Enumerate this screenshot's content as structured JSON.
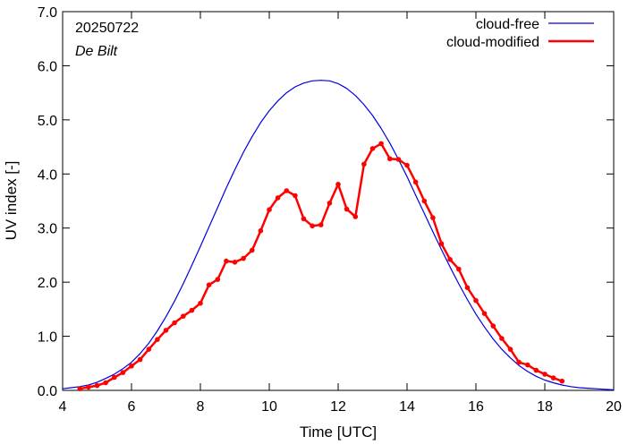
{
  "chart_data": {
    "type": "line",
    "title": "",
    "annotations": [
      "20250722",
      "De Bilt"
    ],
    "xlabel": "Time  [UTC]",
    "ylabel": "UV index  [-]",
    "xlim": [
      4,
      20
    ],
    "ylim": [
      0,
      7
    ],
    "xticks": [
      4,
      6,
      8,
      10,
      12,
      14,
      16,
      18,
      20
    ],
    "xtick_labels": [
      "4",
      "6",
      "8",
      "10",
      "12",
      "14",
      "16",
      "18",
      "20"
    ],
    "yticks": [
      0,
      1,
      2,
      3,
      4,
      5,
      6,
      7
    ],
    "ytick_labels": [
      "0.0",
      "1.0",
      "2.0",
      "3.0",
      "4.0",
      "5.0",
      "6.0",
      "7.0"
    ],
    "grid": false,
    "legend_position": "top-right",
    "series": [
      {
        "name": "cloud-free",
        "color": "#0000e0",
        "x": [
          4.0,
          4.25,
          4.5,
          4.75,
          5.0,
          5.25,
          5.5,
          5.75,
          6.0,
          6.25,
          6.5,
          6.75,
          7.0,
          7.25,
          7.5,
          7.75,
          8.0,
          8.25,
          8.5,
          8.75,
          9.0,
          9.25,
          9.5,
          9.75,
          10.0,
          10.25,
          10.5,
          10.75,
          11.0,
          11.25,
          11.5,
          11.75,
          12.0,
          12.25,
          12.5,
          12.75,
          13.0,
          13.25,
          13.5,
          13.75,
          14.0,
          14.25,
          14.5,
          14.75,
          15.0,
          15.25,
          15.5,
          15.75,
          16.0,
          16.25,
          16.5,
          16.75,
          17.0,
          17.25,
          17.5,
          17.75,
          18.0,
          18.25,
          18.5,
          18.75,
          19.0,
          19.25,
          19.5,
          19.75,
          20.0
        ],
        "y": [
          0.03,
          0.05,
          0.07,
          0.1,
          0.15,
          0.22,
          0.3,
          0.4,
          0.52,
          0.68,
          0.87,
          1.1,
          1.36,
          1.65,
          1.97,
          2.31,
          2.66,
          3.02,
          3.38,
          3.74,
          4.08,
          4.4,
          4.69,
          4.95,
          5.17,
          5.35,
          5.5,
          5.61,
          5.68,
          5.72,
          5.73,
          5.72,
          5.67,
          5.58,
          5.45,
          5.28,
          5.08,
          4.84,
          4.57,
          4.27,
          3.95,
          3.61,
          3.27,
          2.93,
          2.6,
          2.28,
          1.97,
          1.68,
          1.41,
          1.17,
          0.95,
          0.76,
          0.6,
          0.46,
          0.35,
          0.26,
          0.19,
          0.14,
          0.1,
          0.07,
          0.05,
          0.04,
          0.03,
          0.02,
          0.01
        ]
      },
      {
        "name": "cloud-modified",
        "color": "#ff0000",
        "x": [
          4.5,
          4.75,
          5.0,
          5.25,
          5.5,
          5.75,
          6.0,
          6.25,
          6.5,
          6.75,
          7.0,
          7.25,
          7.5,
          7.75,
          8.0,
          8.25,
          8.5,
          8.75,
          9.0,
          9.25,
          9.5,
          9.75,
          10.0,
          10.25,
          10.5,
          10.75,
          11.0,
          11.25,
          11.5,
          11.75,
          12.0,
          12.25,
          12.5,
          12.75,
          13.0,
          13.25,
          13.5,
          13.75,
          14.0,
          14.25,
          14.5,
          14.75,
          15.0,
          15.25,
          15.5,
          15.75,
          16.0,
          16.25,
          16.5,
          16.75,
          17.0,
          17.25,
          17.5,
          17.75,
          18.0,
          18.25,
          18.5
        ],
        "y": [
          0.03,
          0.06,
          0.09,
          0.14,
          0.24,
          0.33,
          0.45,
          0.57,
          0.76,
          0.94,
          1.11,
          1.25,
          1.37,
          1.48,
          1.61,
          1.95,
          2.05,
          2.39,
          2.37,
          2.44,
          2.59,
          2.95,
          3.34,
          3.56,
          3.69,
          3.6,
          3.17,
          3.04,
          3.06,
          3.46,
          3.81,
          3.35,
          3.21,
          4.18,
          4.47,
          4.56,
          4.28,
          4.27,
          4.16,
          3.85,
          3.5,
          3.19,
          2.71,
          2.42,
          2.24,
          1.9,
          1.66,
          1.42,
          1.19,
          0.96,
          0.76,
          0.52,
          0.47,
          0.37,
          0.3,
          0.23,
          0.17
        ]
      }
    ]
  }
}
